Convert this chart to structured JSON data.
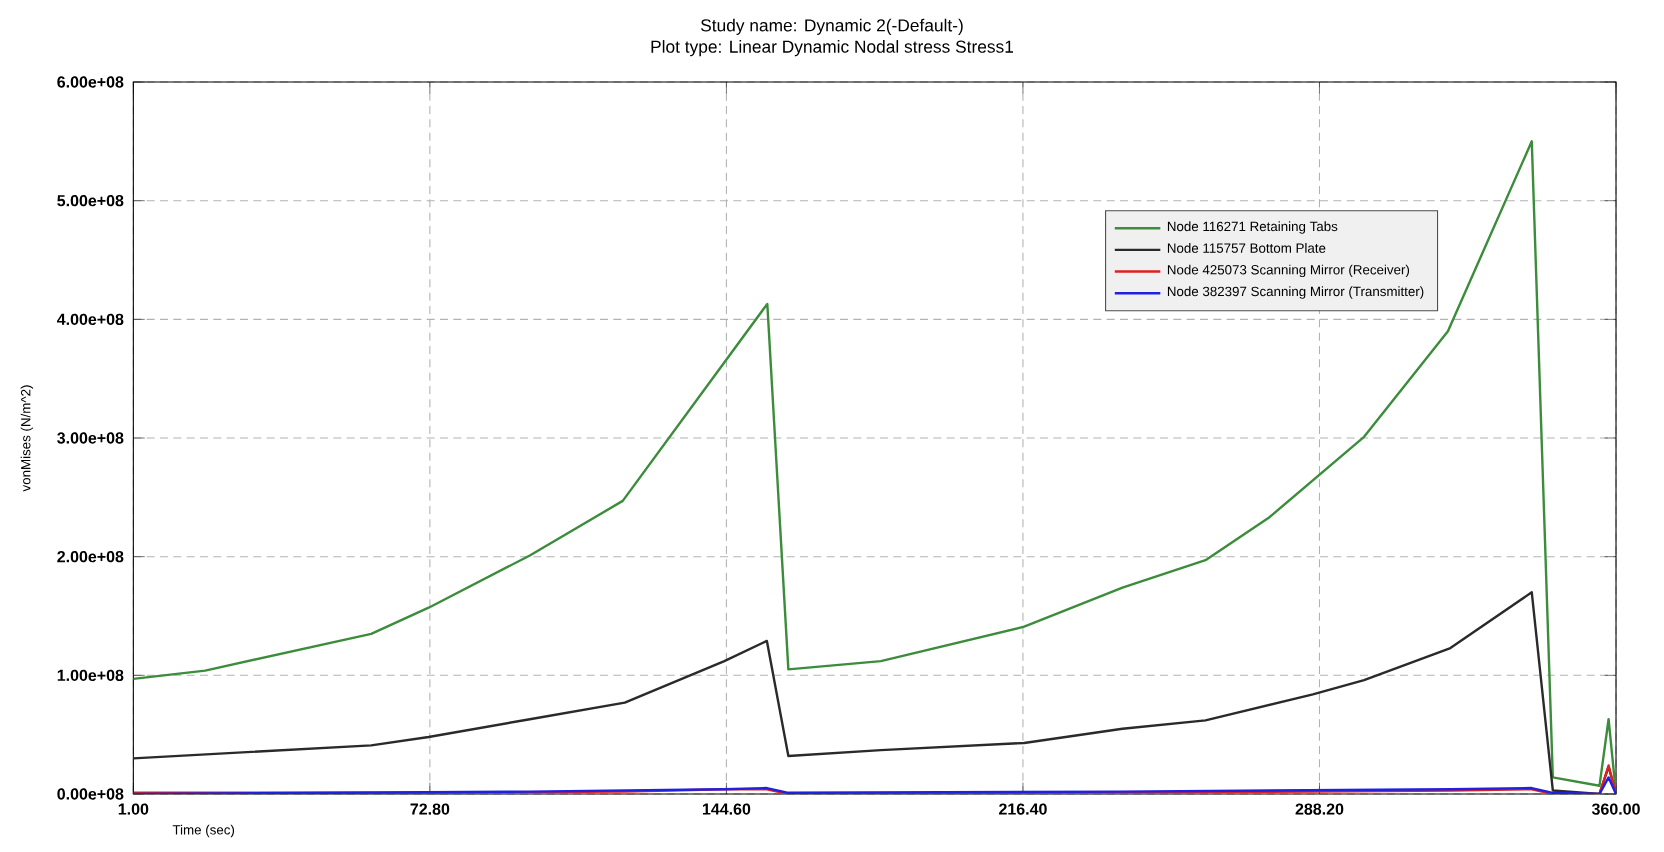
{
  "chart_data": {
    "type": "line",
    "title": "Study name: Dynamic 2(-Default-)",
    "subtitle": "Plot type: Linear Dynamic Nodal stress Stress1",
    "xlabel": "Time (sec)",
    "ylabel": "vonMises (N/m^2)",
    "xlim": [
      1,
      360
    ],
    "xticks": [
      {
        "value": 1,
        "label": "1.00"
      },
      {
        "value": 72.8,
        "label": "72.80"
      },
      {
        "value": 144.6,
        "label": "144.60"
      },
      {
        "value": 216.4,
        "label": "216.40"
      },
      {
        "value": 288.2,
        "label": "288.20"
      },
      {
        "value": 360,
        "label": "360.00"
      }
    ],
    "ylim": [
      0,
      600000000
    ],
    "yticks": [
      {
        "value": 0,
        "label": "0.00e+08"
      },
      {
        "value": 100000000,
        "label": "1.00e+08"
      },
      {
        "value": 200000000,
        "label": "2.00e+08"
      },
      {
        "value": 300000000,
        "label": "3.00e+08"
      },
      {
        "value": 400000000,
        "label": "4.00e+08"
      },
      {
        "value": 500000000,
        "label": "5.00e+08"
      },
      {
        "value": 600000000,
        "label": "6.00e+08"
      }
    ],
    "grid": true,
    "legend": "top right",
    "line_style": "solid",
    "marker": "none",
    "series": [
      {
        "name": "Node 116271 Retaining Tabs",
        "color": "#3c8c3c",
        "x": [
          1,
          18.4,
          58.6,
          72.5,
          97,
          119.5,
          154.5,
          159.6,
          182,
          216.7,
          240.5,
          260.6,
          276,
          299,
          319.3,
          339.6,
          344.7,
          356,
          358.2,
          360
        ],
        "values": [
          97000000,
          104000000,
          135000000,
          157000000,
          201000000,
          247000000,
          413000000,
          105000000,
          112000000,
          141000000,
          174000000,
          197000000,
          233000000,
          301000000,
          390000000,
          550000000,
          14000000,
          7000000,
          63000000,
          0
        ]
      },
      {
        "name": "Node 115757 Bottom Plate",
        "color": "#2a2a2a",
        "x": [
          1,
          58.6,
          72.5,
          97,
          120,
          144.1,
          154.4,
          159.6,
          182,
          216.7,
          240.5,
          260.6,
          286.6,
          299,
          319.9,
          339.6,
          344.7,
          356,
          358.2,
          360
        ],
        "values": [
          30000000,
          41000000,
          48000000,
          63000000,
          77000000,
          112000000,
          129000000,
          32000000,
          37000000,
          43000000,
          55000000,
          62000000,
          84000000,
          96000000,
          123000000,
          170000000,
          3000000,
          0,
          23000000,
          0
        ]
      },
      {
        "name": "Node 425073 Scanning Mirror (Receiver)",
        "color": "#e02020",
        "x": [
          1,
          72.5,
          120,
          144,
          154.4,
          159.6,
          216.7,
          288,
          320,
          339.6,
          344.7,
          356,
          358.2,
          360
        ],
        "values": [
          1000000,
          1000000,
          2000000,
          4000000,
          4000000,
          0,
          1000000,
          2000000,
          3000000,
          4000000,
          0,
          0,
          24000000,
          0
        ]
      },
      {
        "name": "Node 382397 Scanning Mirror (Transmitter)",
        "color": "#2020e0",
        "x": [
          1,
          97,
          144,
          154.4,
          159.6,
          240,
          320,
          339.6,
          344.7,
          356,
          358.2,
          360
        ],
        "values": [
          0,
          2000000,
          4000000,
          5000000,
          1000000,
          2000000,
          4000000,
          5000000,
          1000000,
          0,
          14000000,
          0
        ]
      }
    ]
  }
}
